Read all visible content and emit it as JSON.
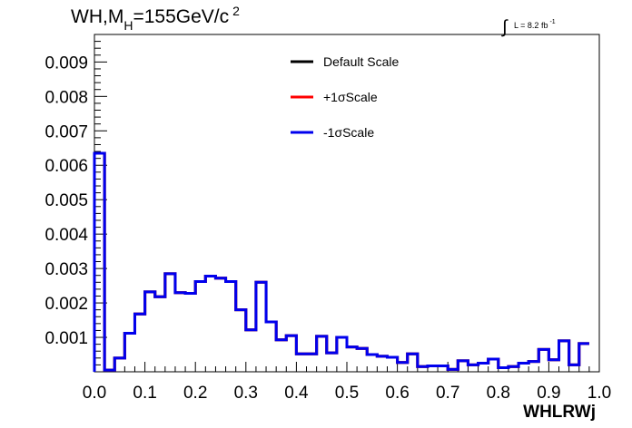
{
  "chart_data": {
    "type": "histogram",
    "title_parts": {
      "prefix": "WH,M",
      "subscript": "H",
      "value": "=155GeV/c",
      "superscript": "2"
    },
    "lumi_label": {
      "integral_sign": "∫",
      "text": "L = 8.2 fb",
      "superscript": "-1"
    },
    "xlabel": "WHLRWj",
    "xlim": [
      0.0,
      1.0
    ],
    "ylim": [
      0.0,
      0.0098
    ],
    "x_ticks": [
      "0.0",
      "0.1",
      "0.2",
      "0.3",
      "0.4",
      "0.5",
      "0.6",
      "0.7",
      "0.8",
      "0.9",
      "1.0"
    ],
    "y_ticks": [
      "0.001",
      "0.002",
      "0.003",
      "0.004",
      "0.005",
      "0.006",
      "0.007",
      "0.008",
      "0.009"
    ],
    "bin_width": 0.02,
    "series": [
      {
        "name": "Default Scale",
        "color": "#000000",
        "values": [
          0.00635,
          5e-05,
          0.0004,
          0.00112,
          0.00168,
          0.00232,
          0.00218,
          0.00285,
          0.0023,
          0.00228,
          0.00262,
          0.00278,
          0.00272,
          0.00262,
          0.0018,
          0.00122,
          0.0026,
          0.00145,
          0.00093,
          0.00105,
          0.00052,
          0.00052,
          0.00103,
          0.00055,
          0.001,
          0.00072,
          0.00068,
          0.0005,
          0.00045,
          0.00042,
          0.00027,
          0.00052,
          0.00015,
          0.00017,
          0.00017,
          7e-05,
          0.00032,
          0.0002,
          0.00025,
          0.00037,
          0.00012,
          0.00015,
          0.00025,
          0.0003,
          0.00065,
          0.00035,
          0.0009,
          0.0002,
          0.00082
        ]
      },
      {
        "name": "+1σScale",
        "color": "#ff0000",
        "values": [
          0.00635,
          5e-05,
          0.0004,
          0.00112,
          0.00168,
          0.00232,
          0.00218,
          0.00285,
          0.0023,
          0.00228,
          0.00262,
          0.00278,
          0.00272,
          0.00262,
          0.0018,
          0.00122,
          0.0026,
          0.00145,
          0.00093,
          0.00105,
          0.00052,
          0.00052,
          0.00103,
          0.00055,
          0.001,
          0.00072,
          0.00068,
          0.0005,
          0.00045,
          0.00042,
          0.00027,
          0.00052,
          0.00015,
          0.00017,
          0.00017,
          7e-05,
          0.00032,
          0.0002,
          0.00025,
          0.00037,
          0.00012,
          0.00015,
          0.00025,
          0.0003,
          0.00065,
          0.00035,
          0.0009,
          0.0002,
          0.00082
        ]
      },
      {
        "name": "-1σScale",
        "color": "#0000ee",
        "values": [
          0.00635,
          5e-05,
          0.0004,
          0.00112,
          0.00168,
          0.00232,
          0.00218,
          0.00285,
          0.0023,
          0.00228,
          0.00262,
          0.00278,
          0.00272,
          0.00262,
          0.0018,
          0.00122,
          0.0026,
          0.00145,
          0.00093,
          0.00105,
          0.00052,
          0.00052,
          0.00103,
          0.00055,
          0.001,
          0.00072,
          0.00068,
          0.0005,
          0.00045,
          0.00042,
          0.00027,
          0.00052,
          0.00015,
          0.00017,
          0.00017,
          7e-05,
          0.00032,
          0.0002,
          0.00025,
          0.00037,
          0.00012,
          0.00015,
          0.00025,
          0.0003,
          0.00065,
          0.00035,
          0.0009,
          0.0002,
          0.00082
        ]
      }
    ],
    "legend_position": "top-center",
    "grid": false
  }
}
